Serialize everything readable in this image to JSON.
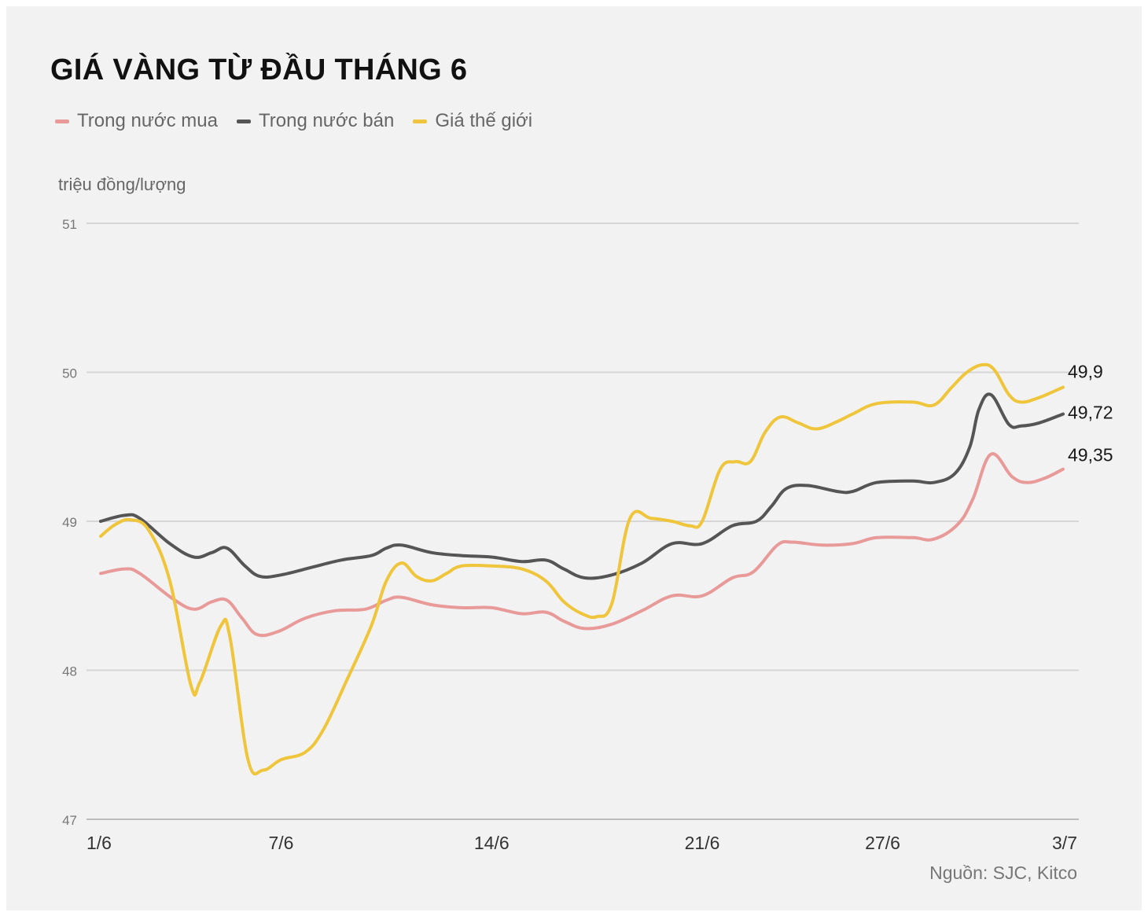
{
  "chart_data": {
    "type": "line",
    "title": "GIÁ VÀNG TỪ ĐẦU THÁNG 6",
    "ylabel": "triệu đồng/lượng",
    "xlabel": "",
    "ylim": [
      47,
      51
    ],
    "yticks": [
      47,
      48,
      49,
      50,
      51
    ],
    "ytick_labels": [
      "47",
      "48",
      "49",
      "50",
      "51"
    ],
    "xlim": [
      1,
      33
    ],
    "xticks": [
      {
        "day": 1,
        "label": "1/6"
      },
      {
        "day": 7,
        "label": "7/6"
      },
      {
        "day": 14,
        "label": "14/6"
      },
      {
        "day": 21,
        "label": "21/6"
      },
      {
        "day": 27,
        "label": "27/6"
      },
      {
        "day": 33,
        "label": "3/7"
      }
    ],
    "grid": true,
    "legend_position": "top-left",
    "source": "Nguồn: SJC, Kitco",
    "series": [
      {
        "name": "Trong nước mua",
        "color": "#e89a99",
        "end_label": "49,35",
        "points": [
          [
            1,
            48.65
          ],
          [
            1.8,
            48.68
          ],
          [
            2.3,
            48.65
          ],
          [
            3.4,
            48.48
          ],
          [
            4.1,
            48.41
          ],
          [
            4.7,
            48.46
          ],
          [
            5.2,
            48.47
          ],
          [
            5.7,
            48.35
          ],
          [
            6.2,
            48.24
          ],
          [
            6.9,
            48.26
          ],
          [
            7.8,
            48.35
          ],
          [
            8.8,
            48.4
          ],
          [
            9.8,
            48.41
          ],
          [
            10.5,
            48.47
          ],
          [
            11,
            48.49
          ],
          [
            12,
            48.44
          ],
          [
            13,
            48.42
          ],
          [
            14,
            48.42
          ],
          [
            15,
            48.38
          ],
          [
            15.8,
            48.39
          ],
          [
            16.4,
            48.33
          ],
          [
            17.1,
            48.28
          ],
          [
            18,
            48.31
          ],
          [
            19,
            48.4
          ],
          [
            20,
            48.5
          ],
          [
            21,
            48.5
          ],
          [
            22,
            48.62
          ],
          [
            22.7,
            48.66
          ],
          [
            23.5,
            48.84
          ],
          [
            24,
            48.86
          ],
          [
            25,
            48.84
          ],
          [
            26,
            48.85
          ],
          [
            26.8,
            48.89
          ],
          [
            28,
            48.89
          ],
          [
            28.7,
            48.88
          ],
          [
            29.5,
            48.98
          ],
          [
            30,
            49.15
          ],
          [
            30.6,
            49.45
          ],
          [
            31.3,
            49.3
          ],
          [
            31.8,
            49.26
          ],
          [
            32.4,
            49.29
          ],
          [
            33,
            49.35
          ]
        ]
      },
      {
        "name": "Trong nước bán",
        "color": "#555555",
        "end_label": "49,72",
        "points": [
          [
            1,
            49.0
          ],
          [
            1.8,
            49.04
          ],
          [
            2.3,
            49.02
          ],
          [
            3.3,
            48.85
          ],
          [
            4.1,
            48.76
          ],
          [
            4.7,
            48.79
          ],
          [
            5.2,
            48.82
          ],
          [
            5.8,
            48.7
          ],
          [
            6.3,
            48.63
          ],
          [
            7,
            48.64
          ],
          [
            8,
            48.69
          ],
          [
            9,
            48.74
          ],
          [
            10,
            48.77
          ],
          [
            10.5,
            48.82
          ],
          [
            11,
            48.84
          ],
          [
            12,
            48.79
          ],
          [
            13,
            48.77
          ],
          [
            14,
            48.76
          ],
          [
            15,
            48.73
          ],
          [
            15.8,
            48.74
          ],
          [
            16.4,
            48.68
          ],
          [
            17.1,
            48.62
          ],
          [
            18,
            48.64
          ],
          [
            19,
            48.72
          ],
          [
            20,
            48.85
          ],
          [
            21,
            48.85
          ],
          [
            22,
            48.97
          ],
          [
            22.8,
            49.0
          ],
          [
            23.3,
            49.1
          ],
          [
            23.8,
            49.22
          ],
          [
            24.5,
            49.24
          ],
          [
            25.5,
            49.2
          ],
          [
            26,
            49.2
          ],
          [
            26.8,
            49.26
          ],
          [
            28,
            49.27
          ],
          [
            28.7,
            49.26
          ],
          [
            29.4,
            49.32
          ],
          [
            29.9,
            49.5
          ],
          [
            30.2,
            49.75
          ],
          [
            30.6,
            49.85
          ],
          [
            31.2,
            49.65
          ],
          [
            31.6,
            49.64
          ],
          [
            32.2,
            49.66
          ],
          [
            33,
            49.72
          ]
        ]
      },
      {
        "name": "Giá thế giới",
        "color": "#efc53b",
        "end_label": "49,9",
        "points": [
          [
            1,
            48.9
          ],
          [
            1.5,
            48.98
          ],
          [
            2,
            49.01
          ],
          [
            2.6,
            48.94
          ],
          [
            3.3,
            48.6
          ],
          [
            4,
            47.9
          ],
          [
            4.3,
            47.92
          ],
          [
            5,
            48.3
          ],
          [
            5.3,
            48.22
          ],
          [
            5.9,
            47.4
          ],
          [
            6.4,
            47.33
          ],
          [
            7,
            47.4
          ],
          [
            7.8,
            47.45
          ],
          [
            8.4,
            47.6
          ],
          [
            9.2,
            47.94
          ],
          [
            10,
            48.3
          ],
          [
            10.5,
            48.6
          ],
          [
            11,
            48.72
          ],
          [
            11.5,
            48.63
          ],
          [
            12,
            48.6
          ],
          [
            12.5,
            48.65
          ],
          [
            13,
            48.7
          ],
          [
            14,
            48.7
          ],
          [
            15,
            48.68
          ],
          [
            15.8,
            48.6
          ],
          [
            16.4,
            48.46
          ],
          [
            17,
            48.38
          ],
          [
            17.5,
            48.36
          ],
          [
            18,
            48.45
          ],
          [
            18.6,
            49.02
          ],
          [
            19.3,
            49.02
          ],
          [
            20,
            49.0
          ],
          [
            20.6,
            48.97
          ],
          [
            21,
            49.0
          ],
          [
            21.6,
            49.35
          ],
          [
            22.1,
            49.4
          ],
          [
            22.6,
            49.4
          ],
          [
            23.1,
            49.6
          ],
          [
            23.6,
            49.7
          ],
          [
            24.2,
            49.66
          ],
          [
            24.8,
            49.62
          ],
          [
            25.5,
            49.67
          ],
          [
            26,
            49.72
          ],
          [
            26.8,
            49.79
          ],
          [
            28,
            49.8
          ],
          [
            28.7,
            49.78
          ],
          [
            29.3,
            49.9
          ],
          [
            29.8,
            50.0
          ],
          [
            30.3,
            50.05
          ],
          [
            30.7,
            50.02
          ],
          [
            31.2,
            49.85
          ],
          [
            31.6,
            49.8
          ],
          [
            32.2,
            49.83
          ],
          [
            33,
            49.9
          ]
        ]
      }
    ]
  }
}
